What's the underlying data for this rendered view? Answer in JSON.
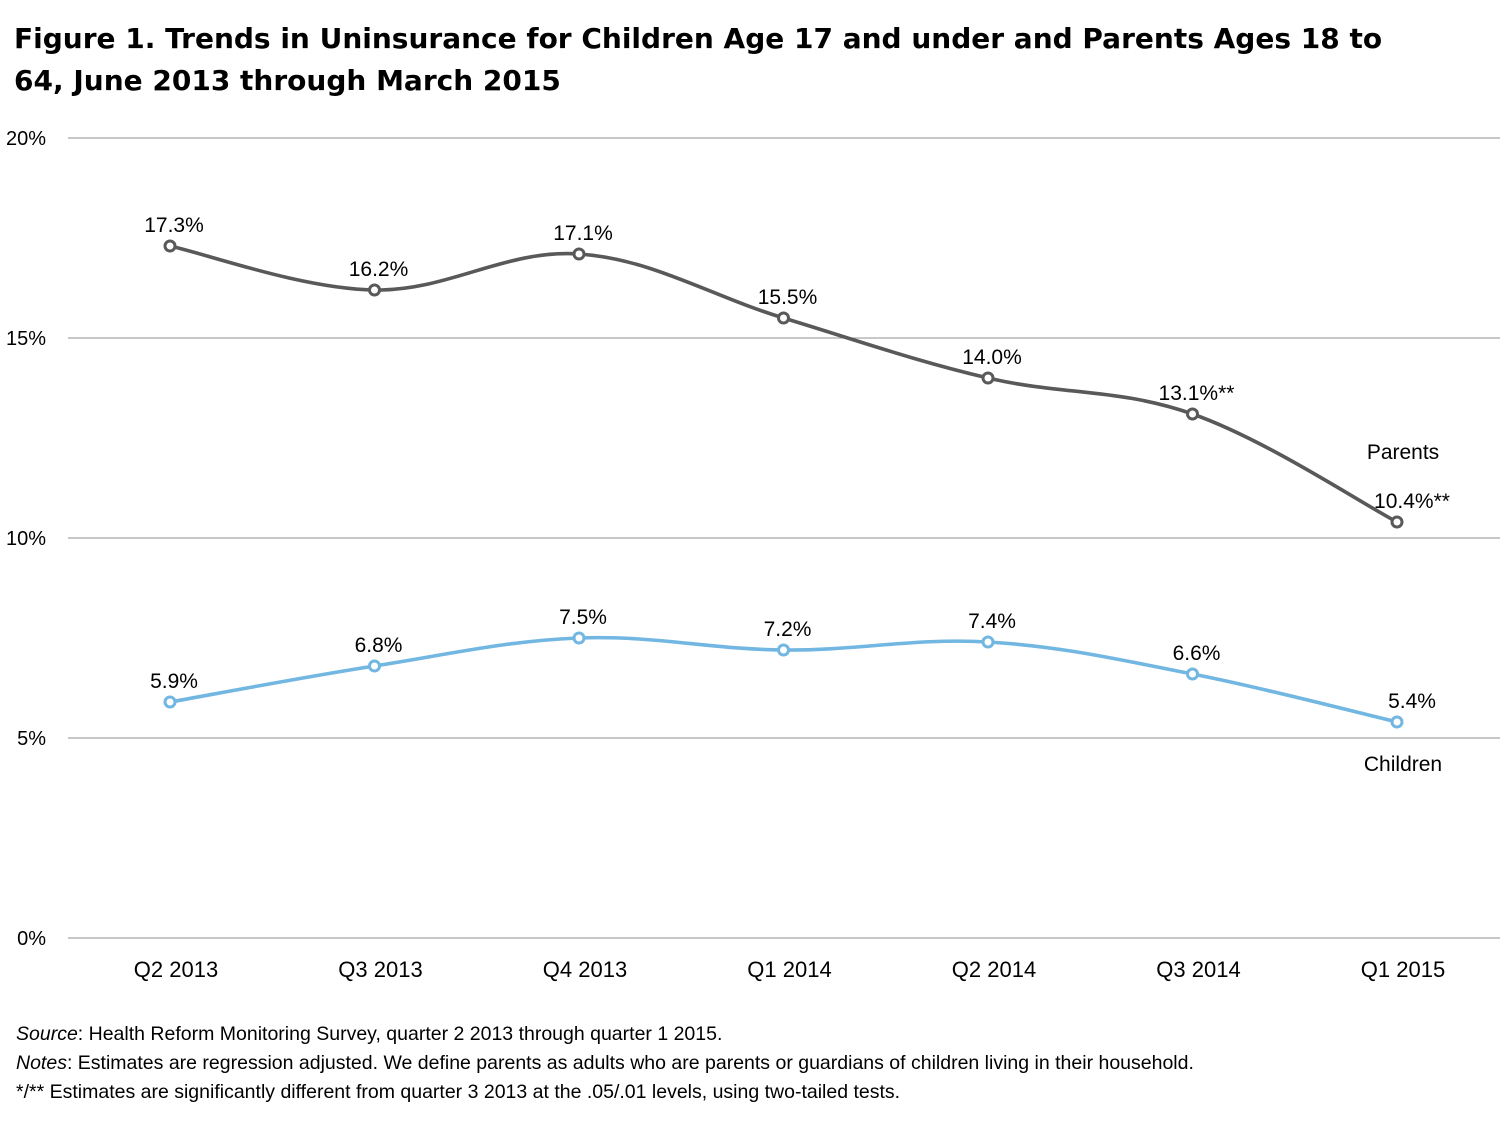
{
  "title": "Figure 1. Trends in Uninsurance for Children Age 17 and under and Parents Ages 18 to 64, June 2013 through March 2015",
  "notes": {
    "source_label": "Source",
    "source_text": ": Health Reform Monitoring Survey, quarter 2 2013 through quarter 1 2015.",
    "notes_label": "Notes",
    "notes_text": ": Estimates are regression adjusted. We define parents as adults who are parents or guardians of children living in their household.",
    "significance": "*/** Estimates are significantly different from quarter 3 2013 at the .05/.01 levels, using two-tailed tests."
  },
  "colors": {
    "parents": "#595959",
    "children": "#72b6e2",
    "grid": "#a6a6a6"
  },
  "chart_data": {
    "type": "line",
    "categories": [
      "Q2 2013",
      "Q3 2013",
      "Q4 2013",
      "Q1 2014",
      "Q2 2014",
      "Q3 2014",
      "Q1 2015"
    ],
    "ylim": [
      0,
      20
    ],
    "yticks": [
      0,
      5,
      10,
      15,
      20
    ],
    "ytick_labels": [
      "0%",
      "5%",
      "10%",
      "15%",
      "20%"
    ],
    "grid": true,
    "series": [
      {
        "name": "Parents",
        "values": [
          17.3,
          16.2,
          17.1,
          15.5,
          14.0,
          13.1,
          10.4
        ],
        "labels": [
          "17.3%",
          "16.2%",
          "17.1%",
          "15.5%",
          "14.0%",
          "13.1%**",
          "10.4%**"
        ]
      },
      {
        "name": "Children",
        "values": [
          5.9,
          6.8,
          7.5,
          7.2,
          7.4,
          6.6,
          5.4
        ],
        "labels": [
          "5.9%",
          "6.8%",
          "7.5%",
          "7.2%",
          "7.4%",
          "6.6%",
          "5.4%"
        ]
      }
    ]
  }
}
